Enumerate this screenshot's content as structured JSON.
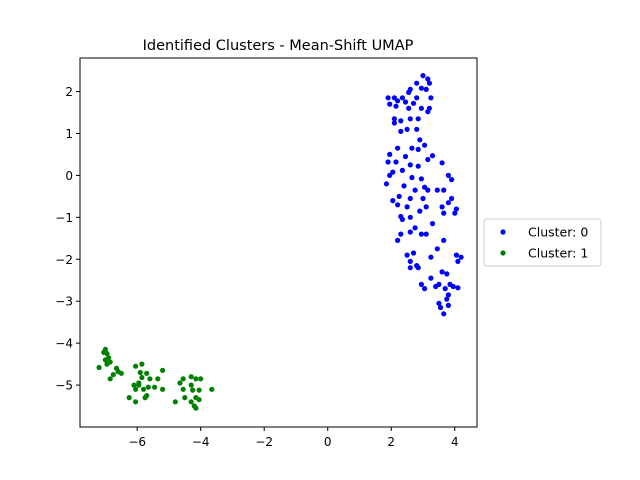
{
  "chart_data": {
    "type": "scatter",
    "title": "Identified Clusters - Mean-Shift UMAP",
    "xlabel": "",
    "ylabel": "",
    "xlim": [
      -7.8,
      4.7
    ],
    "ylim": [
      -6.0,
      2.8
    ],
    "xticks": [
      -6,
      -4,
      -2,
      0,
      2,
      4
    ],
    "yticks": [
      -5,
      -4,
      -3,
      -2,
      -1,
      0,
      1,
      2
    ],
    "xtick_labels": [
      "−6",
      "−4",
      "−2",
      "0",
      "2",
      "4"
    ],
    "ytick_labels": [
      "−5",
      "−4",
      "−3",
      "−2",
      "−1",
      "0",
      "1",
      "2"
    ],
    "grid": false,
    "legend_position": "outside-right",
    "series": [
      {
        "name": "Cluster: 0",
        "color": "#0000ff",
        "points": [
          [
            3.0,
            2.38
          ],
          [
            3.15,
            2.3
          ],
          [
            3.2,
            2.2
          ],
          [
            2.95,
            2.08
          ],
          [
            3.1,
            2.05
          ],
          [
            2.8,
            2.2
          ],
          [
            2.6,
            2.05
          ],
          [
            2.55,
            1.98
          ],
          [
            2.35,
            1.85
          ],
          [
            2.1,
            1.85
          ],
          [
            1.9,
            1.85
          ],
          [
            2.2,
            1.78
          ],
          [
            2.45,
            1.75
          ],
          [
            2.8,
            1.85
          ],
          [
            3.25,
            1.85
          ],
          [
            2.7,
            1.72
          ],
          [
            1.95,
            1.7
          ],
          [
            2.15,
            1.65
          ],
          [
            2.55,
            1.6
          ],
          [
            2.95,
            1.6
          ],
          [
            3.2,
            1.6
          ],
          [
            3.15,
            1.52
          ],
          [
            2.1,
            1.35
          ],
          [
            2.1,
            1.25
          ],
          [
            2.3,
            1.3
          ],
          [
            2.6,
            1.35
          ],
          [
            2.85,
            1.35
          ],
          [
            2.5,
            1.1
          ],
          [
            2.8,
            1.1
          ],
          [
            2.3,
            1.05
          ],
          [
            2.9,
            0.85
          ],
          [
            3.05,
            0.72
          ],
          [
            2.65,
            0.65
          ],
          [
            2.85,
            0.62
          ],
          [
            2.2,
            0.65
          ],
          [
            3.3,
            0.47
          ],
          [
            2.45,
            0.45
          ],
          [
            1.95,
            0.5
          ],
          [
            3.15,
            0.38
          ],
          [
            3.6,
            0.3
          ],
          [
            2.15,
            0.32
          ],
          [
            1.9,
            0.32
          ],
          [
            2.6,
            0.25
          ],
          [
            2.85,
            0.22
          ],
          [
            2.35,
            0.12
          ],
          [
            2.05,
            0.08
          ],
          [
            1.95,
            0.0
          ],
          [
            3.8,
            0.0
          ],
          [
            2.65,
            -0.05
          ],
          [
            2.95,
            -0.08
          ],
          [
            3.9,
            -0.1
          ],
          [
            2.4,
            -0.25
          ],
          [
            1.85,
            -0.2
          ],
          [
            3.05,
            -0.28
          ],
          [
            3.15,
            -0.35
          ],
          [
            2.75,
            -0.35
          ],
          [
            3.45,
            -0.35
          ],
          [
            3.65,
            -0.35
          ],
          [
            2.25,
            -0.5
          ],
          [
            2.6,
            -0.55
          ],
          [
            2.05,
            -0.6
          ],
          [
            3.0,
            -0.55
          ],
          [
            3.9,
            -0.55
          ],
          [
            3.8,
            -0.65
          ],
          [
            2.2,
            -0.7
          ],
          [
            2.5,
            -0.75
          ],
          [
            3.6,
            -0.75
          ],
          [
            4.05,
            -0.8
          ],
          [
            3.1,
            -0.75
          ],
          [
            2.9,
            -0.85
          ],
          [
            3.65,
            -0.9
          ],
          [
            2.3,
            -0.98
          ],
          [
            2.35,
            -1.05
          ],
          [
            4.0,
            -0.9
          ],
          [
            2.6,
            -1.0
          ],
          [
            3.3,
            -1.15
          ],
          [
            2.75,
            -1.25
          ],
          [
            3.1,
            -1.4
          ],
          [
            2.3,
            -1.4
          ],
          [
            2.6,
            -1.35
          ],
          [
            2.95,
            -1.4
          ],
          [
            2.2,
            -1.55
          ],
          [
            3.65,
            -1.55
          ],
          [
            3.45,
            -1.75
          ],
          [
            2.7,
            -1.85
          ],
          [
            2.5,
            -1.9
          ],
          [
            3.25,
            -1.95
          ],
          [
            2.6,
            -2.05
          ],
          [
            4.05,
            -1.9
          ],
          [
            4.2,
            -1.95
          ],
          [
            4.1,
            -2.05
          ],
          [
            2.8,
            -2.15
          ],
          [
            2.85,
            -2.2
          ],
          [
            2.6,
            -2.2
          ],
          [
            3.6,
            -2.3
          ],
          [
            3.75,
            -2.35
          ],
          [
            3.25,
            -2.45
          ],
          [
            2.95,
            -2.6
          ],
          [
            3.5,
            -2.6
          ],
          [
            3.85,
            -2.6
          ],
          [
            3.4,
            -2.65
          ],
          [
            3.05,
            -2.7
          ],
          [
            3.7,
            -2.7
          ],
          [
            3.95,
            -2.65
          ],
          [
            4.1,
            -2.68
          ],
          [
            3.8,
            -2.85
          ],
          [
            3.75,
            -2.95
          ],
          [
            3.5,
            -3.05
          ],
          [
            3.55,
            -3.15
          ],
          [
            3.8,
            -3.1
          ],
          [
            3.65,
            -3.3
          ]
        ]
      },
      {
        "name": "Cluster: 1",
        "color": "#008000",
        "points": [
          [
            -7.0,
            -4.15
          ],
          [
            -6.95,
            -4.25
          ],
          [
            -7.05,
            -4.22
          ],
          [
            -6.9,
            -4.35
          ],
          [
            -7.0,
            -4.4
          ],
          [
            -6.85,
            -4.45
          ],
          [
            -6.95,
            -4.5
          ],
          [
            -7.2,
            -4.58
          ],
          [
            -6.65,
            -4.6
          ],
          [
            -6.6,
            -4.68
          ],
          [
            -6.5,
            -4.72
          ],
          [
            -6.75,
            -4.75
          ],
          [
            -6.85,
            -4.85
          ],
          [
            -5.85,
            -4.5
          ],
          [
            -6.05,
            -4.55
          ],
          [
            -5.7,
            -4.72
          ],
          [
            -5.9,
            -4.7
          ],
          [
            -5.2,
            -4.65
          ],
          [
            -5.85,
            -4.82
          ],
          [
            -5.95,
            -4.95
          ],
          [
            -5.6,
            -4.85
          ],
          [
            -5.35,
            -4.85
          ],
          [
            -6.1,
            -5.0
          ],
          [
            -5.95,
            -5.0
          ],
          [
            -6.05,
            -5.1
          ],
          [
            -5.45,
            -5.05
          ],
          [
            -5.2,
            -5.1
          ],
          [
            -5.65,
            -5.05
          ],
          [
            -5.8,
            -5.1
          ],
          [
            -5.7,
            -5.25
          ],
          [
            -5.75,
            -5.3
          ],
          [
            -6.25,
            -5.3
          ],
          [
            -6.05,
            -5.4
          ],
          [
            -4.8,
            -5.4
          ],
          [
            -4.3,
            -4.8
          ],
          [
            -4.55,
            -4.85
          ],
          [
            -4.15,
            -4.85
          ],
          [
            -4.65,
            -4.95
          ],
          [
            -4.0,
            -4.85
          ],
          [
            -4.3,
            -5.0
          ],
          [
            -3.65,
            -5.1
          ],
          [
            -4.55,
            -5.1
          ],
          [
            -4.25,
            -5.12
          ],
          [
            -4.05,
            -5.12
          ],
          [
            -4.5,
            -5.3
          ],
          [
            -4.15,
            -5.3
          ],
          [
            -4.05,
            -5.35
          ],
          [
            -4.3,
            -5.4
          ],
          [
            -4.2,
            -5.5
          ],
          [
            -4.15,
            -5.55
          ]
        ]
      }
    ]
  }
}
